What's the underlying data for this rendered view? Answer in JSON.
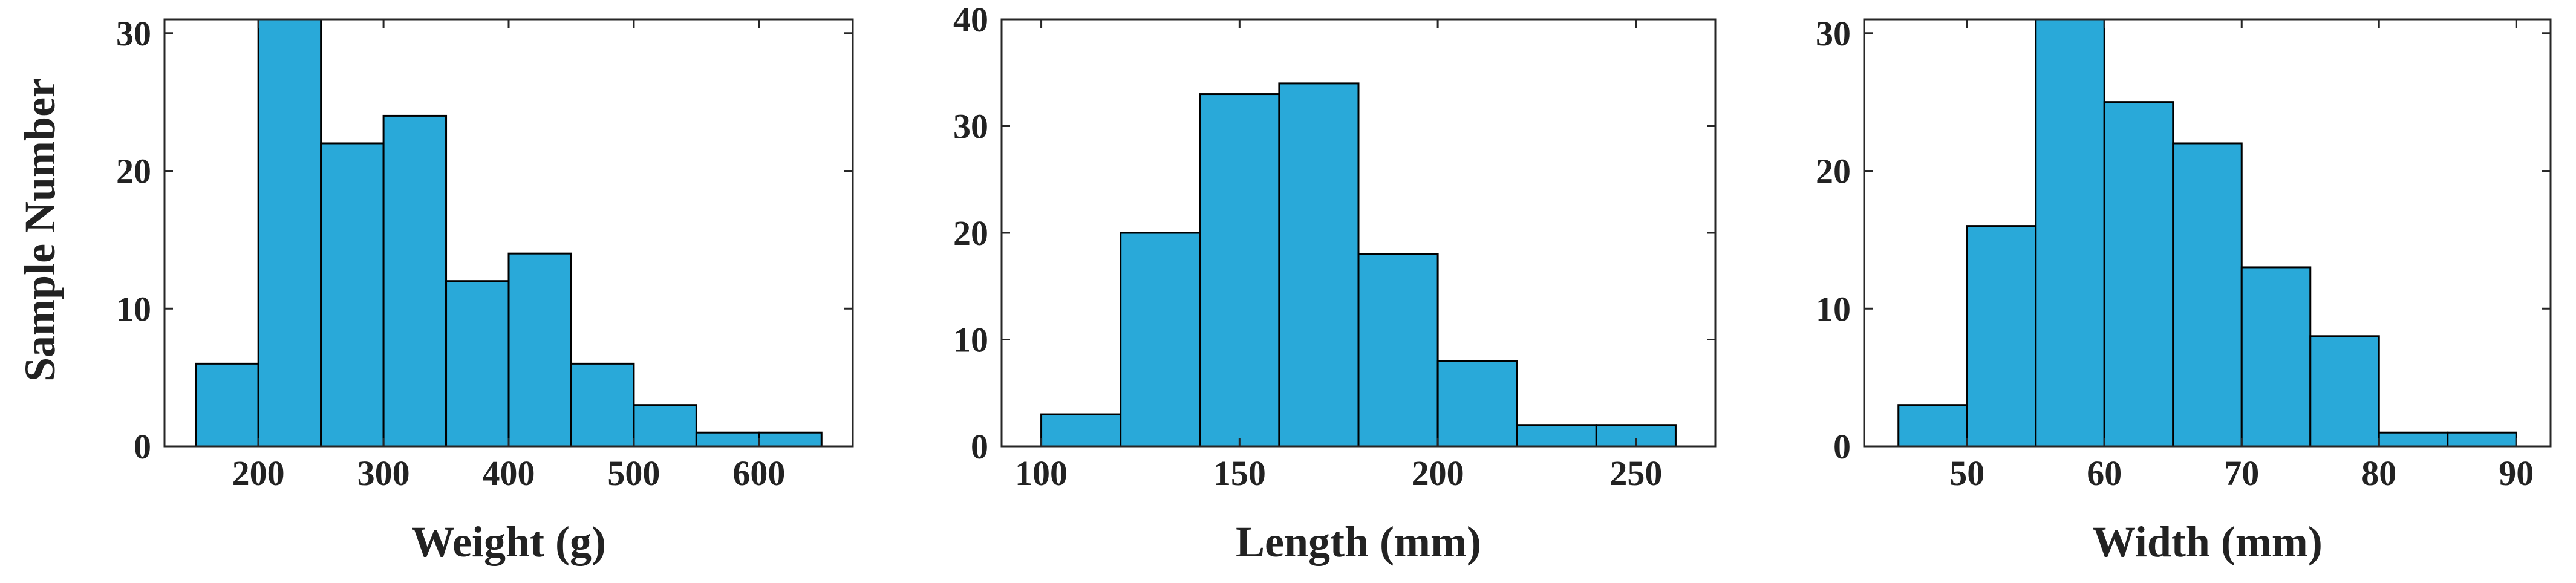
{
  "figure": {
    "ylabel": "Sample Number",
    "bar_color": "#29a9d9",
    "edge_color": "#000000"
  },
  "chart_data": [
    {
      "type": "bar",
      "xlabel": "Weight (g)",
      "ylabel": "Sample Number",
      "xlim": [
        125,
        675
      ],
      "ylim": [
        0,
        31
      ],
      "xticks": [
        200,
        300,
        400,
        500,
        600
      ],
      "yticks": [
        0,
        10,
        20,
        30
      ],
      "bin_edges": [
        150,
        200,
        250,
        300,
        350,
        400,
        450,
        500,
        550,
        600,
        650
      ],
      "values": [
        6,
        31,
        22,
        24,
        12,
        14,
        6,
        3,
        1,
        1
      ]
    },
    {
      "type": "bar",
      "xlabel": "Length (mm)",
      "ylabel": "",
      "xlim": [
        90,
        270
      ],
      "ylim": [
        0,
        40
      ],
      "xticks": [
        100,
        150,
        200,
        250
      ],
      "yticks": [
        0,
        10,
        20,
        30,
        40
      ],
      "bin_edges": [
        100,
        120,
        140,
        160,
        180,
        200,
        220,
        240,
        260
      ],
      "values": [
        3,
        20,
        33,
        34,
        18,
        8,
        2,
        2
      ]
    },
    {
      "type": "bar",
      "xlabel": "Width (mm)",
      "ylabel": "",
      "xlim": [
        42.5,
        92.5
      ],
      "ylim": [
        0,
        31
      ],
      "xticks": [
        50,
        60,
        70,
        80,
        90
      ],
      "yticks": [
        0,
        10,
        20,
        30
      ],
      "bin_edges": [
        45,
        50,
        55,
        60,
        65,
        70,
        75,
        80,
        85,
        90
      ],
      "values": [
        3,
        16,
        31,
        25,
        22,
        13,
        8,
        1,
        1
      ]
    }
  ]
}
